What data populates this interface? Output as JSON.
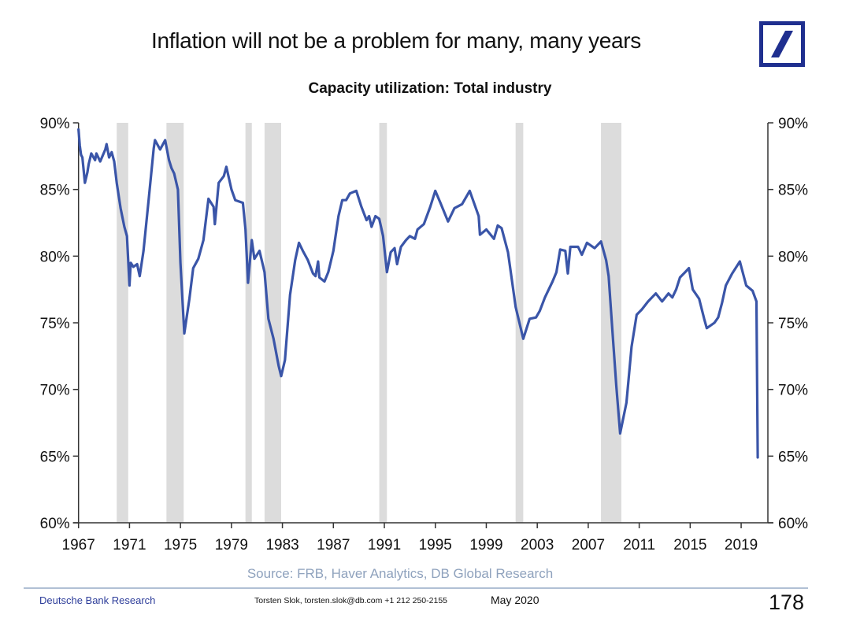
{
  "slide": {
    "title": "Inflation will not be a problem for many, many years",
    "logo": "deutsche-bank-logo",
    "source": "Source: FRB, Haver Analytics, DB Global Research",
    "footer": {
      "org": "Deutsche Bank Research",
      "author": "Torsten Slok, torsten.slok@db.com  +1 212 250-2155",
      "date": "May 2020",
      "page": "178"
    }
  },
  "colors": {
    "line": "#3a55a8",
    "recession": "#dcdcdc",
    "axis": "#333333",
    "logo": "#1f2f8f"
  },
  "chart_data": {
    "type": "line",
    "title": "Capacity utilization: Total industry",
    "xlabel": "",
    "ylabel": "",
    "ylim": [
      60,
      90
    ],
    "xlim": [
      1967.0,
      2021.1
    ],
    "y_ticks": [
      60,
      65,
      70,
      75,
      80,
      85,
      90
    ],
    "y_tick_labels": [
      "60%",
      "65%",
      "70%",
      "75%",
      "80%",
      "85%",
      "90%"
    ],
    "y_axes": [
      "left",
      "right"
    ],
    "x_ticks": [
      1967,
      1971,
      1975,
      1979,
      1983,
      1987,
      1991,
      1995,
      1999,
      2003,
      2007,
      2011,
      2015,
      2019
    ],
    "x_tick_labels": [
      "1967",
      "1971",
      "1975",
      "1979",
      "1983",
      "1987",
      "1991",
      "1995",
      "1999",
      "2003",
      "2007",
      "2011",
      "2015",
      "2019"
    ],
    "grid": false,
    "legend": "none",
    "recessions": [
      {
        "start": 1970.0,
        "end": 1970.9
      },
      {
        "start": 1973.9,
        "end": 1975.25
      },
      {
        "start": 1980.1,
        "end": 1980.6
      },
      {
        "start": 1981.6,
        "end": 1982.9
      },
      {
        "start": 1990.6,
        "end": 1991.2
      },
      {
        "start": 2001.3,
        "end": 2001.9
      },
      {
        "start": 2008.0,
        "end": 2009.6
      }
    ],
    "series": [
      {
        "name": "Capacity utilization: Total industry (%)",
        "x": [
          1967.0,
          1967.1,
          1967.2,
          1967.3,
          1967.5,
          1967.7,
          1967.8,
          1968.0,
          1968.3,
          1968.4,
          1968.7,
          1969.1,
          1969.2,
          1969.4,
          1969.6,
          1969.8,
          1970.0,
          1970.3,
          1970.6,
          1970.8,
          1971.0,
          1971.1,
          1971.3,
          1971.6,
          1971.8,
          1972.1,
          1972.5,
          1972.9,
          1973.0,
          1973.4,
          1973.8,
          1974.1,
          1974.3,
          1974.5,
          1974.8,
          1975.0,
          1975.3,
          1975.7,
          1976.0,
          1976.4,
          1976.8,
          1977.2,
          1977.6,
          1977.7,
          1978.0,
          1978.4,
          1978.6,
          1979.0,
          1979.3,
          1979.9,
          1980.1,
          1980.3,
          1980.6,
          1980.8,
          1981.2,
          1981.6,
          1981.9,
          1982.3,
          1982.7,
          1982.9,
          1983.2,
          1983.6,
          1984.0,
          1984.3,
          1984.6,
          1985.0,
          1985.4,
          1985.6,
          1985.8,
          1985.9,
          1986.3,
          1986.6,
          1987.0,
          1987.4,
          1987.7,
          1988.0,
          1988.3,
          1988.8,
          1989.2,
          1989.6,
          1989.8,
          1990.0,
          1990.3,
          1990.6,
          1990.9,
          1991.2,
          1991.5,
          1991.8,
          1992.0,
          1992.3,
          1992.7,
          1993.0,
          1993.4,
          1993.6,
          1994.1,
          1994.6,
          1995.0,
          1995.4,
          1996.0,
          1996.5,
          1997.1,
          1997.7,
          1998.4,
          1998.5,
          1999.0,
          1999.6,
          1999.9,
          2000.2,
          2000.7,
          2001.3,
          2001.9,
          2002.4,
          2002.9,
          2003.2,
          2003.6,
          2004.2,
          2004.5,
          2004.8,
          2005.2,
          2005.4,
          2005.6,
          2006.2,
          2006.5,
          2006.9,
          2007.5,
          2008.0,
          2008.4,
          2008.6,
          2008.9,
          2009.2,
          2009.5,
          2010.0,
          2010.4,
          2010.8,
          2011.2,
          2011.7,
          2012.3,
          2012.8,
          2013.3,
          2013.6,
          2013.9,
          2014.2,
          2014.6,
          2014.9,
          2015.2,
          2015.7,
          2016.1,
          2016.3,
          2016.9,
          2017.2,
          2017.5,
          2017.8,
          2018.3,
          2018.9,
          2019.4,
          2019.9,
          2020.2,
          2020.3
        ],
        "values": [
          89.5,
          88.3,
          87.6,
          87.4,
          85.5,
          86.3,
          86.9,
          87.7,
          87.2,
          87.7,
          87.1,
          88.0,
          88.4,
          87.4,
          87.8,
          87.1,
          85.5,
          83.6,
          82.2,
          81.5,
          77.8,
          79.5,
          79.2,
          79.4,
          78.5,
          80.4,
          84.2,
          88.1,
          88.7,
          88.0,
          88.7,
          87.2,
          86.6,
          86.2,
          85.0,
          79.5,
          74.2,
          76.8,
          79.1,
          79.8,
          81.2,
          84.3,
          83.7,
          82.4,
          85.5,
          86.0,
          86.7,
          85.0,
          84.2,
          84.0,
          82.0,
          78.0,
          81.2,
          79.8,
          80.4,
          78.8,
          75.3,
          73.8,
          71.8,
          71.0,
          72.2,
          77.1,
          79.7,
          81.0,
          80.4,
          79.7,
          78.7,
          78.5,
          79.6,
          78.4,
          78.1,
          78.8,
          80.4,
          83.0,
          84.2,
          84.2,
          84.7,
          84.9,
          83.7,
          82.7,
          83.0,
          82.2,
          83.0,
          82.8,
          81.5,
          78.8,
          80.3,
          80.6,
          79.4,
          80.7,
          81.2,
          81.5,
          81.3,
          82.0,
          82.4,
          83.7,
          84.9,
          84.0,
          82.6,
          83.6,
          83.9,
          84.9,
          83.0,
          81.6,
          82.0,
          81.3,
          82.3,
          82.1,
          80.3,
          76.2,
          73.8,
          75.3,
          75.4,
          75.9,
          76.9,
          78.1,
          78.8,
          80.5,
          80.4,
          78.7,
          80.7,
          80.7,
          80.1,
          81.0,
          80.6,
          81.1,
          79.7,
          78.5,
          74.4,
          70.3,
          66.7,
          69.0,
          73.2,
          75.6,
          76.0,
          76.6,
          77.2,
          76.6,
          77.2,
          76.9,
          77.5,
          78.4,
          78.8,
          79.1,
          77.5,
          76.8,
          75.3,
          74.6,
          75.0,
          75.4,
          76.5,
          77.8,
          78.7,
          79.6,
          77.8,
          77.4,
          76.6,
          64.9
        ]
      }
    ]
  }
}
